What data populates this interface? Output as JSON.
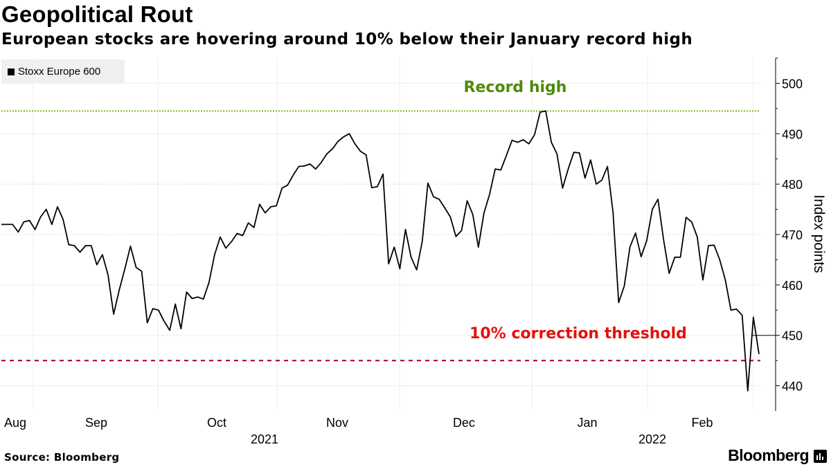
{
  "header": {
    "title": "Geopolitical Rout",
    "subtitle": "European stocks are hovering around 10% below their January record high"
  },
  "footer": {
    "source": "Source: Bloomberg",
    "brand": "Bloomberg"
  },
  "icons": {
    "brand_logo": "bloomberg-terminal-icon"
  },
  "colors": {
    "series": "#000000",
    "record_high": "#84c225",
    "record_high_text": "#4d8a0b",
    "correction_line": "#b0163a",
    "correction_text": "#e3120b",
    "grid": "#c8c8c8"
  },
  "chart_data": {
    "type": "line",
    "title": "Geopolitical Rout",
    "subtitle": "European stocks are hovering around 10% below their January record high",
    "xlabel": "",
    "ylabel": "Index points",
    "ylim": [
      435,
      505
    ],
    "y_ticks": [
      440,
      450,
      460,
      470,
      480,
      490,
      500
    ],
    "month_labels": [
      "Aug",
      "Sep",
      "Oct",
      "Nov",
      "Dec",
      "Jan",
      "Feb"
    ],
    "year_labels": [
      "2021",
      "2022"
    ],
    "legend": [
      "Stoxx Europe 600"
    ],
    "grid": true,
    "annotations": [
      {
        "label": "Record high",
        "value": 494.5
      },
      {
        "label": "10% correction threshold",
        "value": 445
      }
    ],
    "series": [
      {
        "name": "Stoxx Europe 600",
        "values": [
          472,
          472,
          472,
          470.5,
          472.5,
          472.8,
          471,
          473.5,
          475,
          472,
          475.5,
          473,
          468,
          467.8,
          466.5,
          467.8,
          467.8,
          464,
          466,
          462,
          454.2,
          459,
          463.2,
          467.7,
          463.5,
          462.7,
          452.5,
          455.3,
          455,
          452.8,
          451,
          456.2,
          451.3,
          458.6,
          457.3,
          457.6,
          457.2,
          460.5,
          466,
          469.5,
          467.3,
          468.6,
          470.2,
          469.8,
          472.3,
          471.4,
          476,
          474.3,
          475.5,
          475.7,
          479.2,
          479.8,
          481.8,
          483.5,
          483.6,
          484,
          483,
          484.3,
          486,
          487,
          488.5,
          489.4,
          490,
          488,
          486.5,
          485.8,
          479.3,
          479.5,
          482,
          464.2,
          467.5,
          463.2,
          471,
          465.5,
          463,
          468.7,
          480.2,
          477.5,
          477,
          475.3,
          473.5,
          469.6,
          470.8,
          476.7,
          474,
          467.5,
          474.3,
          478,
          483,
          482.8,
          485.7,
          488.7,
          488.3,
          488.8,
          488,
          489.8,
          494.3,
          494.5,
          488.3,
          486,
          479.2,
          483,
          486.3,
          486.2,
          481.2,
          484.8,
          480,
          480.8,
          483.5,
          474.3,
          456.5,
          459.8,
          467.5,
          470.3,
          465.6,
          468.8,
          475,
          477,
          469,
          462.3,
          465.5,
          465.5,
          473.4,
          472.5,
          469.5,
          461,
          467.8,
          467.9,
          465,
          461,
          455,
          455.2,
          454,
          439,
          453.6,
          446.3
        ]
      }
    ]
  }
}
